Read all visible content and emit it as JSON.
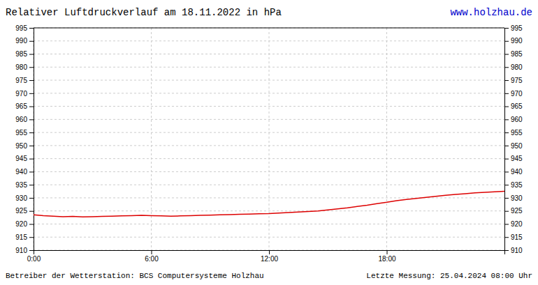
{
  "chart_data": {
    "type": "line",
    "title": "Relativer Luftdruckverlauf am 18.11.2022 in hPa",
    "annotations": [
      "www.holzhau.de",
      "Betreiber der Wetterstation: BCS Computersysteme Holzhau",
      "Letzte Messung: 25.04.2024 08:00 Uhr"
    ],
    "x": [
      0,
      30,
      60,
      90,
      120,
      150,
      180,
      210,
      240,
      270,
      300,
      330,
      360,
      390,
      420,
      450,
      480,
      510,
      540,
      570,
      600,
      630,
      660,
      690,
      720,
      750,
      780,
      810,
      840,
      870,
      900,
      930,
      960,
      990,
      1020,
      1050,
      1080,
      1110,
      1140,
      1170,
      1200,
      1230,
      1260,
      1290,
      1320,
      1350,
      1380,
      1410,
      1440
    ],
    "values": [
      923.5,
      923.2,
      923.0,
      922.8,
      922.9,
      922.7,
      922.8,
      922.9,
      923.0,
      923.1,
      923.2,
      923.3,
      923.2,
      923.1,
      923.0,
      923.1,
      923.2,
      923.3,
      923.4,
      923.5,
      923.6,
      923.7,
      923.8,
      923.9,
      924.0,
      924.2,
      924.4,
      924.6,
      924.8,
      925.0,
      925.4,
      925.8,
      926.2,
      926.7,
      927.2,
      927.8,
      928.3,
      928.9,
      929.4,
      929.8,
      930.2,
      930.6,
      931.0,
      931.3,
      931.6,
      931.9,
      932.1,
      932.3,
      932.5
    ],
    "color": "#dd0000",
    "xlim": [
      0,
      1440
    ],
    "xticks": [
      {
        "value": 0,
        "label": "0:00"
      },
      {
        "value": 360,
        "label": "6:00"
      },
      {
        "value": 720,
        "label": "12:00"
      },
      {
        "value": 1080,
        "label": "18:00"
      }
    ],
    "ylim": [
      910,
      995
    ],
    "yticks": [
      910,
      915,
      920,
      925,
      930,
      935,
      940,
      945,
      950,
      955,
      960,
      965,
      970,
      975,
      980,
      985,
      990,
      995
    ],
    "y2lim": [
      910,
      995
    ],
    "y2ticks": [
      910,
      915,
      920,
      925,
      930,
      935,
      940,
      945,
      950,
      955,
      960,
      965,
      970,
      975,
      980,
      985,
      990,
      995
    ],
    "grid": true
  }
}
